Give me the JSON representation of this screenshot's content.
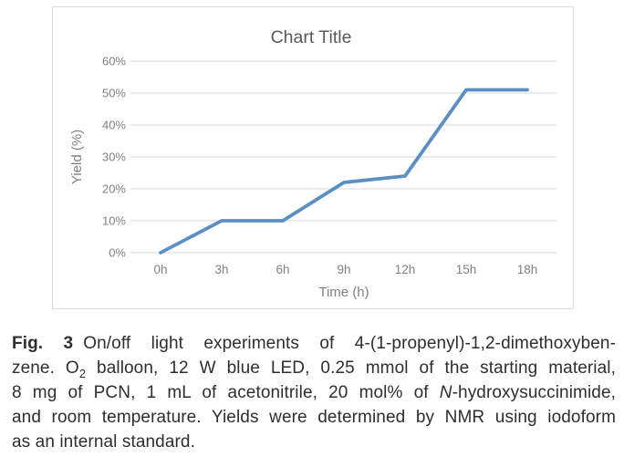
{
  "chart_data": {
    "type": "line",
    "title": "Chart Title",
    "categories": [
      "0h",
      "3h",
      "6h",
      "9h",
      "12h",
      "15h",
      "18h"
    ],
    "values": [
      0,
      10,
      10,
      22,
      24,
      51,
      51
    ],
    "xlabel": "Time (h)",
    "ylabel": "Yield (%)",
    "ylim": [
      0,
      60
    ],
    "y_tick_step": 10,
    "y_tick_labels": [
      "0%",
      "10%",
      "20%",
      "30%",
      "40%",
      "50%",
      "60%"
    ],
    "grid": true,
    "legend_position": "none",
    "colors": {
      "line": "#5B8FC4",
      "gridline": "#D9D9D9",
      "tick_label": "#808080",
      "axis_title": "#7F7F7F",
      "title": "#595959",
      "chart_border": "#DCDCDC",
      "caption_text": "#2e2e2e"
    }
  },
  "figure": {
    "caption_lines": [
      {
        "justify": true,
        "parts": [
          {
            "t": "Fig. 3",
            "style": "bold"
          },
          {
            "t": "On/off light experiments of 4-(1-propenyl)-1,2-dimethoxyben-",
            "style": "normal"
          }
        ]
      },
      {
        "justify": true,
        "parts": [
          {
            "t": "zene. O",
            "style": "normal"
          },
          {
            "t": "2",
            "style": "sub"
          },
          {
            "t": " balloon, 12 W blue LED, 0.25 mmol of the starting material,",
            "style": "normal"
          }
        ]
      },
      {
        "justify": true,
        "parts": [
          {
            "t": "8 mg of PCN, 1 mL of acetonitrile, 20 mol% of ",
            "style": "normal"
          },
          {
            "t": "N",
            "style": "italic"
          },
          {
            "t": "-hydroxysuccinimide,",
            "style": "normal"
          }
        ]
      },
      {
        "justify": true,
        "parts": [
          {
            "t": "and room temperature. Yields were determined by NMR using iodoform",
            "style": "normal"
          }
        ]
      },
      {
        "justify": false,
        "parts": [
          {
            "t": "as an internal standard.",
            "style": "normal"
          }
        ]
      }
    ]
  }
}
